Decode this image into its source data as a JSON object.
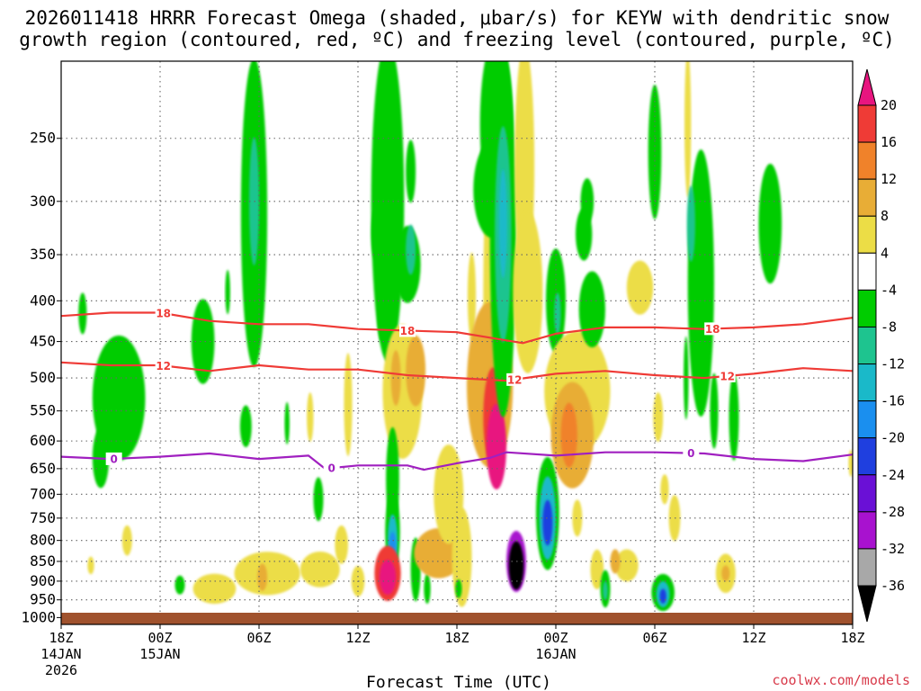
{
  "chart_data": {
    "type": "heatmap",
    "title_lines": [
      "2026011418 HRRR Forecast Omega (shaded, μbar/s) for KEYW with dendritic snow",
      "growth region (contoured, red, ºC) and freezing level (contoured, purple, ºC)"
    ],
    "xlabel": "Forecast Time (UTC)",
    "ylabel": "",
    "credit": "coolwx.com/models",
    "x_ticks": [
      {
        "hour": 0,
        "label": "18Z",
        "sub1": "14JAN",
        "sub2": "2026"
      },
      {
        "hour": 6,
        "label": "00Z",
        "sub1": "15JAN",
        "sub2": ""
      },
      {
        "hour": 12,
        "label": "06Z",
        "sub1": "",
        "sub2": ""
      },
      {
        "hour": 18,
        "label": "12Z",
        "sub1": "",
        "sub2": ""
      },
      {
        "hour": 24,
        "label": "18Z",
        "sub1": "",
        "sub2": ""
      },
      {
        "hour": 30,
        "label": "00Z",
        "sub1": "16JAN",
        "sub2": ""
      },
      {
        "hour": 36,
        "label": "06Z",
        "sub1": "",
        "sub2": ""
      },
      {
        "hour": 42,
        "label": "12Z",
        "sub1": "",
        "sub2": ""
      },
      {
        "hour": 48,
        "label": "18Z",
        "sub1": "",
        "sub2": ""
      }
    ],
    "x_range_hours": [
      0,
      48
    ],
    "y_axis": "pressure (hPa), log scale, inverted",
    "y_range": [
      1020,
      200
    ],
    "y_ticks": [
      250,
      300,
      350,
      400,
      450,
      500,
      550,
      600,
      650,
      700,
      750,
      800,
      850,
      900,
      950,
      1000
    ],
    "colorbar": {
      "ticks": [
        "20",
        "16",
        "12",
        "8",
        "4",
        "-4",
        "-8",
        "-12",
        "-16",
        "-20",
        "-24",
        "-28",
        "-32",
        "-36"
      ],
      "bins": [
        {
          "range": "above 20",
          "color": "#e8157f"
        },
        {
          "range": "16 to 20",
          "color": "#ef3b36"
        },
        {
          "range": "12 to 16",
          "color": "#f0822a"
        },
        {
          "range": "8 to 12",
          "color": "#e8ad36"
        },
        {
          "range": "4 to 8",
          "color": "#ecdd46"
        },
        {
          "range": "-4 to 4",
          "color": "#ffffff"
        },
        {
          "range": "-8 to -4",
          "color": "#00cc00"
        },
        {
          "range": "-12 to -8",
          "color": "#1ec48f"
        },
        {
          "range": "-16 to -12",
          "color": "#1ab9c9"
        },
        {
          "range": "-20 to -16",
          "color": "#1a8fef"
        },
        {
          "range": "-24 to -20",
          "color": "#1f3fdf"
        },
        {
          "range": "-28 to -24",
          "color": "#6a10d6"
        },
        {
          "range": "-32 to -28",
          "color": "#a812cf"
        },
        {
          "range": "-36 to -32",
          "color": "#a8a8a8"
        },
        {
          "range": "below -36",
          "color": "#000000"
        }
      ]
    },
    "contours": [
      {
        "name": "-18C isotherm",
        "label": "18",
        "color": "#ef3b36",
        "points": [
          [
            0,
            418
          ],
          [
            3,
            414
          ],
          [
            6,
            414
          ],
          [
            9,
            424
          ],
          [
            12,
            428
          ],
          [
            15,
            428
          ],
          [
            18,
            434
          ],
          [
            24,
            438
          ],
          [
            28,
            452
          ],
          [
            30,
            440
          ],
          [
            33,
            432
          ],
          [
            36,
            432
          ],
          [
            39,
            434
          ],
          [
            42,
            432
          ],
          [
            45,
            428
          ],
          [
            48,
            420
          ]
        ],
        "label_hours": [
          6.2,
          21,
          39.5
        ]
      },
      {
        "name": "-12C isotherm",
        "label": "12",
        "color": "#ef3b36",
        "points": [
          [
            0,
            478
          ],
          [
            3,
            482
          ],
          [
            6,
            482
          ],
          [
            9,
            490
          ],
          [
            12,
            482
          ],
          [
            15,
            488
          ],
          [
            18,
            488
          ],
          [
            21,
            496
          ],
          [
            24,
            500
          ],
          [
            27,
            504
          ],
          [
            30,
            494
          ],
          [
            33,
            490
          ],
          [
            36,
            496
          ],
          [
            39,
            500
          ],
          [
            42,
            494
          ],
          [
            45,
            486
          ],
          [
            48,
            490
          ]
        ],
        "label_hours": [
          6.2,
          27.5,
          40.4
        ]
      },
      {
        "name": "freezing level 0C",
        "label": "0",
        "color": "#a020c0",
        "points": [
          [
            0,
            628
          ],
          [
            3,
            632
          ],
          [
            6,
            628
          ],
          [
            9,
            622
          ],
          [
            12,
            632
          ],
          [
            15,
            626
          ],
          [
            16,
            650
          ],
          [
            18,
            644
          ],
          [
            21,
            644
          ],
          [
            22,
            652
          ],
          [
            24,
            640
          ],
          [
            26,
            630
          ],
          [
            27,
            620
          ],
          [
            30,
            626
          ],
          [
            33,
            620
          ],
          [
            36,
            620
          ],
          [
            39,
            622
          ],
          [
            42,
            632
          ],
          [
            45,
            636
          ],
          [
            48,
            624
          ]
        ],
        "label_hours": [
          3.2,
          16.4,
          38.2
        ]
      }
    ],
    "omega_cells": [
      {
        "t": 1.3,
        "p": 415,
        "rt": 0.25,
        "rp": 25,
        "color": "#00cc00"
      },
      {
        "t": 3.5,
        "p": 530,
        "rt": 1.6,
        "rp": 95,
        "color": "#00cc00"
      },
      {
        "t": 2.4,
        "p": 630,
        "rt": 0.5,
        "rp": 55,
        "color": "#00cc00"
      },
      {
        "t": 1.8,
        "p": 860,
        "rt": 0.2,
        "rp": 22,
        "color": "#ecdd46"
      },
      {
        "t": 4.0,
        "p": 800,
        "rt": 0.3,
        "rp": 35,
        "color": "#ecdd46"
      },
      {
        "t": 8.6,
        "p": 450,
        "rt": 0.7,
        "rp": 55,
        "color": "#00cc00"
      },
      {
        "t": 10.1,
        "p": 390,
        "rt": 0.15,
        "rp": 25,
        "color": "#00cc00"
      },
      {
        "t": 11.7,
        "p": 310,
        "rt": 0.8,
        "rp": 130,
        "color": "#00cc00"
      },
      {
        "t": 11.7,
        "p": 300,
        "rt": 0.3,
        "rp": 55,
        "color": "#1ec48f"
      },
      {
        "t": 11.2,
        "p": 575,
        "rt": 0.35,
        "rp": 35,
        "color": "#00cc00"
      },
      {
        "t": 13.7,
        "p": 570,
        "rt": 0.15,
        "rp": 35,
        "color": "#00cc00"
      },
      {
        "t": 15.1,
        "p": 560,
        "rt": 0.2,
        "rp": 40,
        "color": "#ecdd46"
      },
      {
        "t": 15.6,
        "p": 710,
        "rt": 0.3,
        "rp": 45,
        "color": "#00cc00"
      },
      {
        "t": 7.2,
        "p": 910,
        "rt": 0.3,
        "rp": 25,
        "color": "#00cc00"
      },
      {
        "t": 9.3,
        "p": 920,
        "rt": 1.3,
        "rp": 40,
        "color": "#ecdd46"
      },
      {
        "t": 12.5,
        "p": 880,
        "rt": 2.0,
        "rp": 55,
        "color": "#ecdd46"
      },
      {
        "t": 15.7,
        "p": 870,
        "rt": 1.2,
        "rp": 45,
        "color": "#ecdd46"
      },
      {
        "t": 12.2,
        "p": 890,
        "rt": 0.3,
        "rp": 35,
        "color": "#e8ad36"
      },
      {
        "t": 17.0,
        "p": 810,
        "rt": 0.4,
        "rp": 45,
        "color": "#ecdd46"
      },
      {
        "t": 18.0,
        "p": 900,
        "rt": 0.4,
        "rp": 40,
        "color": "#ecdd46"
      },
      {
        "t": 19.8,
        "p": 300,
        "rt": 1.0,
        "rp": 130,
        "color": "#00cc00"
      },
      {
        "t": 21.2,
        "p": 275,
        "rt": 0.3,
        "rp": 25,
        "color": "#00cc00"
      },
      {
        "t": 21.0,
        "p": 360,
        "rt": 0.8,
        "rp": 40,
        "color": "#00cc00"
      },
      {
        "t": 21.2,
        "p": 345,
        "rt": 0.3,
        "rp": 25,
        "color": "#1ec48f"
      },
      {
        "t": 19.1,
        "p": 330,
        "rt": 0.3,
        "rp": 25,
        "color": "#00cc00"
      },
      {
        "t": 19.5,
        "p": 420,
        "rt": 0.3,
        "rp": 30,
        "color": "#00cc00"
      },
      {
        "t": 17.4,
        "p": 540,
        "rt": 0.25,
        "rp": 80,
        "color": "#ecdd46"
      },
      {
        "t": 20.7,
        "p": 520,
        "rt": 1.2,
        "rp": 100,
        "color": "#ecdd46"
      },
      {
        "t": 20.3,
        "p": 500,
        "rt": 0.3,
        "rp": 40,
        "color": "#e8ad36"
      },
      {
        "t": 21.5,
        "p": 490,
        "rt": 0.6,
        "rp": 50,
        "color": "#e8ad36"
      },
      {
        "t": 20.1,
        "p": 670,
        "rt": 0.4,
        "rp": 100,
        "color": "#00cc00"
      },
      {
        "t": 20.1,
        "p": 780,
        "rt": 0.45,
        "rp": 90,
        "color": "#00cc00"
      },
      {
        "t": 20.1,
        "p": 800,
        "rt": 0.3,
        "rp": 60,
        "color": "#1ab9c9"
      },
      {
        "t": 20.1,
        "p": 810,
        "rt": 0.2,
        "rp": 30,
        "color": "#1a8fef"
      },
      {
        "t": 19.8,
        "p": 880,
        "rt": 0.8,
        "rp": 70,
        "color": "#ef3b36"
      },
      {
        "t": 19.8,
        "p": 890,
        "rt": 0.5,
        "rp": 45,
        "color": "#e8157f"
      },
      {
        "t": 21.5,
        "p": 870,
        "rt": 0.3,
        "rp": 80,
        "color": "#00cc00"
      },
      {
        "t": 22.2,
        "p": 920,
        "rt": 0.2,
        "rp": 40,
        "color": "#00cc00"
      },
      {
        "t": 22.9,
        "p": 830,
        "rt": 1.5,
        "rp": 60,
        "color": "#e8ad36"
      },
      {
        "t": 23.5,
        "p": 700,
        "rt": 0.9,
        "rp": 100,
        "color": "#ecdd46"
      },
      {
        "t": 24.3,
        "p": 840,
        "rt": 0.6,
        "rp": 120,
        "color": "#ecdd46"
      },
      {
        "t": 24.1,
        "p": 920,
        "rt": 0.2,
        "rp": 25,
        "color": "#00cc00"
      },
      {
        "t": 24.9,
        "p": 395,
        "rt": 0.25,
        "rp": 50,
        "color": "#ecdd46"
      },
      {
        "t": 25.9,
        "p": 400,
        "rt": 0.3,
        "rp": 140,
        "color": "#ecdd46"
      },
      {
        "t": 26.4,
        "p": 240,
        "rt": 1.0,
        "rp": 60,
        "color": "#00cc00"
      },
      {
        "t": 26.1,
        "p": 290,
        "rt": 1.1,
        "rp": 40,
        "color": "#00cc00"
      },
      {
        "t": 26.0,
        "p": 510,
        "rt": 1.4,
        "rp": 120,
        "color": "#e8ad36"
      },
      {
        "t": 26.2,
        "p": 560,
        "rt": 0.6,
        "rp": 80,
        "color": "#ef3b36"
      },
      {
        "t": 26.4,
        "p": 610,
        "rt": 0.6,
        "rp": 75,
        "color": "#e8157f"
      },
      {
        "t": 26.8,
        "p": 330,
        "rt": 0.8,
        "rp": 160,
        "color": "#00cc00"
      },
      {
        "t": 26.8,
        "p": 330,
        "rt": 0.5,
        "rp": 100,
        "color": "#1ec48f"
      },
      {
        "t": 26.8,
        "p": 320,
        "rt": 0.25,
        "rp": 50,
        "color": "#1ab9c9"
      },
      {
        "t": 28.1,
        "p": 270,
        "rt": 0.6,
        "rp": 90,
        "color": "#ecdd46"
      },
      {
        "t": 28.3,
        "p": 390,
        "rt": 0.9,
        "rp": 90,
        "color": "#ecdd46"
      },
      {
        "t": 27.6,
        "p": 850,
        "rt": 0.6,
        "rp": 75,
        "color": "#a812cf"
      },
      {
        "t": 27.6,
        "p": 860,
        "rt": 0.45,
        "rp": 60,
        "color": "#000000"
      },
      {
        "t": 29.5,
        "p": 740,
        "rt": 0.7,
        "rp": 120,
        "color": "#00cc00"
      },
      {
        "t": 29.5,
        "p": 750,
        "rt": 0.5,
        "rp": 90,
        "color": "#1ab9c9"
      },
      {
        "t": 29.5,
        "p": 760,
        "rt": 0.3,
        "rp": 50,
        "color": "#1f3fdf"
      },
      {
        "t": 30.0,
        "p": 400,
        "rt": 0.6,
        "rp": 60,
        "color": "#00cc00"
      },
      {
        "t": 30.1,
        "p": 415,
        "rt": 0.2,
        "rp": 25,
        "color": "#1ec48f"
      },
      {
        "t": 31.3,
        "p": 520,
        "rt": 2.0,
        "rp": 90,
        "color": "#ecdd46"
      },
      {
        "t": 31.0,
        "p": 590,
        "rt": 1.3,
        "rp": 90,
        "color": "#e8ad36"
      },
      {
        "t": 30.8,
        "p": 590,
        "rt": 0.5,
        "rp": 55,
        "color": "#f0822a"
      },
      {
        "t": 31.9,
        "p": 300,
        "rt": 0.4,
        "rp": 20,
        "color": "#00cc00"
      },
      {
        "t": 31.7,
        "p": 330,
        "rt": 0.5,
        "rp": 25,
        "color": "#00cc00"
      },
      {
        "t": 32.2,
        "p": 410,
        "rt": 0.8,
        "rp": 45,
        "color": "#00cc00"
      },
      {
        "t": 31.3,
        "p": 750,
        "rt": 0.3,
        "rp": 40,
        "color": "#ecdd46"
      },
      {
        "t": 32.5,
        "p": 870,
        "rt": 0.4,
        "rp": 50,
        "color": "#ecdd46"
      },
      {
        "t": 33.0,
        "p": 920,
        "rt": 0.3,
        "rp": 50,
        "color": "#00cc00"
      },
      {
        "t": 33.0,
        "p": 925,
        "rt": 0.15,
        "rp": 25,
        "color": "#1ec48f"
      },
      {
        "t": 34.3,
        "p": 860,
        "rt": 0.7,
        "rp": 40,
        "color": "#ecdd46"
      },
      {
        "t": 33.6,
        "p": 850,
        "rt": 0.3,
        "rp": 30,
        "color": "#e8ad36"
      },
      {
        "t": 35.1,
        "p": 385,
        "rt": 0.8,
        "rp": 30,
        "color": "#ecdd46"
      },
      {
        "t": 36.0,
        "p": 260,
        "rt": 0.4,
        "rp": 50,
        "color": "#00cc00"
      },
      {
        "t": 36.2,
        "p": 560,
        "rt": 0.3,
        "rp": 40,
        "color": "#ecdd46"
      },
      {
        "t": 36.6,
        "p": 690,
        "rt": 0.25,
        "rp": 30,
        "color": "#ecdd46"
      },
      {
        "t": 37.2,
        "p": 750,
        "rt": 0.35,
        "rp": 50,
        "color": "#ecdd46"
      },
      {
        "t": 36.5,
        "p": 930,
        "rt": 0.7,
        "rp": 50,
        "color": "#00cc00"
      },
      {
        "t": 36.5,
        "p": 935,
        "rt": 0.4,
        "rp": 35,
        "color": "#1ab9c9"
      },
      {
        "t": 36.5,
        "p": 940,
        "rt": 0.2,
        "rp": 20,
        "color": "#1f3fdf"
      },
      {
        "t": 38.0,
        "p": 240,
        "rt": 0.2,
        "rp": 50,
        "color": "#ecdd46"
      },
      {
        "t": 37.9,
        "p": 500,
        "rt": 0.15,
        "rp": 60,
        "color": "#00cc00"
      },
      {
        "t": 38.8,
        "p": 380,
        "rt": 0.8,
        "rp": 140,
        "color": "#00cc00"
      },
      {
        "t": 38.2,
        "p": 320,
        "rt": 0.25,
        "rp": 35,
        "color": "#1ec48f"
      },
      {
        "t": 39.6,
        "p": 550,
        "rt": 0.25,
        "rp": 60,
        "color": "#00cc00"
      },
      {
        "t": 40.8,
        "p": 560,
        "rt": 0.3,
        "rp": 70,
        "color": "#00cc00"
      },
      {
        "t": 40.3,
        "p": 880,
        "rt": 0.6,
        "rp": 50,
        "color": "#ecdd46"
      },
      {
        "t": 40.3,
        "p": 880,
        "rt": 0.25,
        "rp": 20,
        "color": "#e8ad36"
      },
      {
        "t": 43.0,
        "p": 320,
        "rt": 0.7,
        "rp": 55,
        "color": "#00cc00"
      },
      {
        "t": 47.9,
        "p": 640,
        "rt": 0.15,
        "rp": 25,
        "color": "#ecdd46"
      }
    ]
  }
}
